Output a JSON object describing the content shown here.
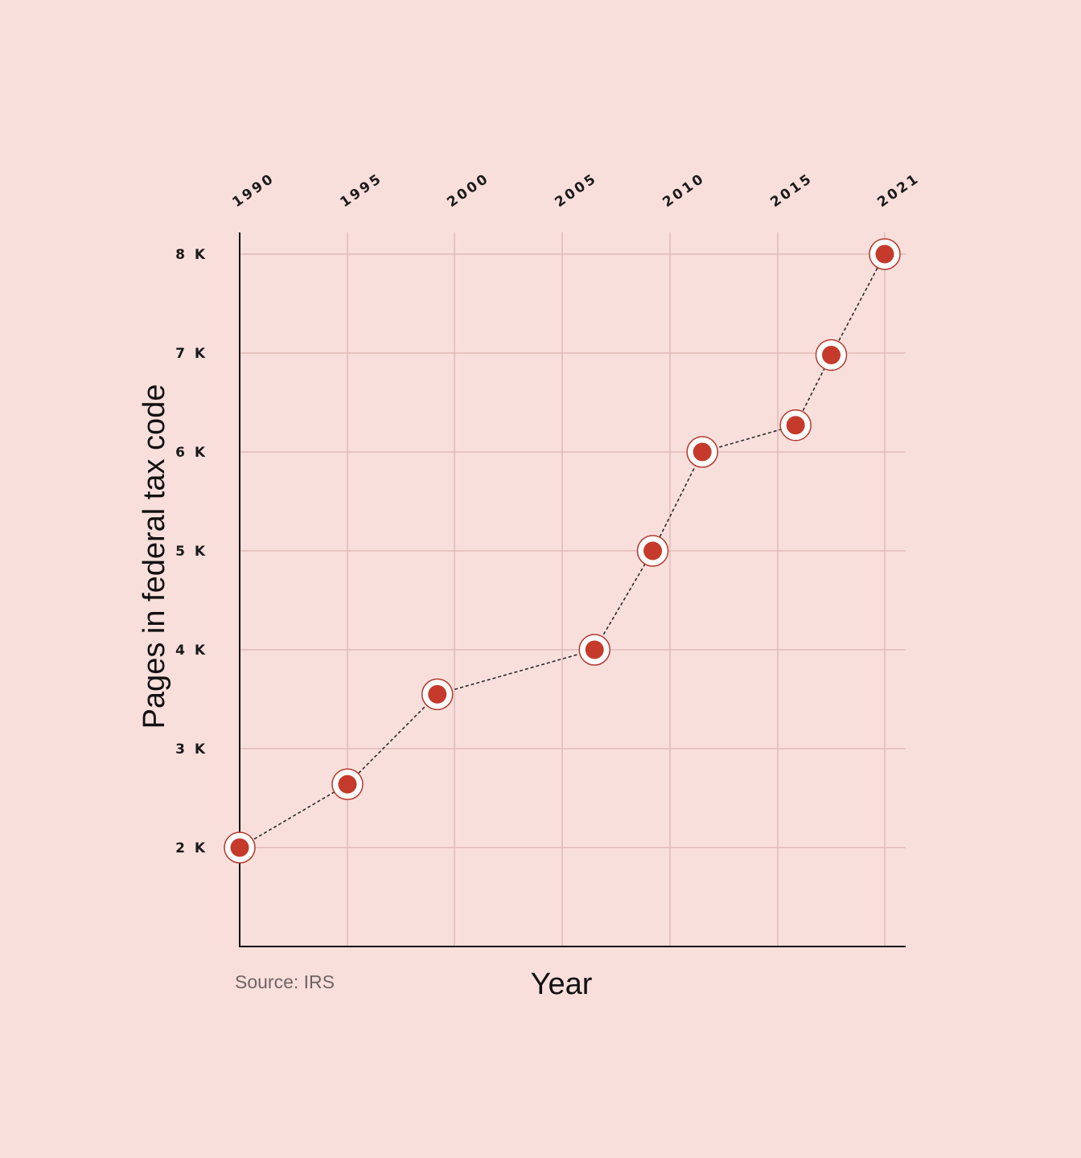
{
  "chart_data": {
    "type": "line",
    "xlabel": "Year",
    "ylabel": "Pages in federal tax code",
    "source": "Source: IRS",
    "x_ticks": [
      {
        "value": 1990,
        "label": "1990"
      },
      {
        "value": 1995,
        "label": "1995"
      },
      {
        "value": 2000,
        "label": "2000"
      },
      {
        "value": 2005,
        "label": "2005"
      },
      {
        "value": 2010,
        "label": "2010"
      },
      {
        "value": 2015,
        "label": "2015"
      },
      {
        "value": 2021,
        "label": "2021"
      }
    ],
    "y_ticks": [
      {
        "value": 2000,
        "label": "2 K"
      },
      {
        "value": 3000,
        "label": "3 K"
      },
      {
        "value": 4000,
        "label": "4 K"
      },
      {
        "value": 5000,
        "label": "5 K"
      },
      {
        "value": 6000,
        "label": "6 K"
      },
      {
        "value": 7000,
        "label": "7 K"
      },
      {
        "value": 8000,
        "label": "8 K"
      }
    ],
    "ylim": [
      1000,
      8230
    ],
    "grid": true,
    "series": [
      {
        "points": [
          {
            "x": 1990,
            "y": 2000
          },
          {
            "x": 1995,
            "y": 2640
          },
          {
            "x": 1999.2,
            "y": 3550
          },
          {
            "x": 2006.5,
            "y": 4000
          },
          {
            "x": 2009.2,
            "y": 5000
          },
          {
            "x": 2011.5,
            "y": 6000
          },
          {
            "x": 2016,
            "y": 6270
          },
          {
            "x": 2018,
            "y": 6980
          },
          {
            "x": 2021,
            "y": 8000
          }
        ]
      }
    ]
  },
  "colors": {
    "background": "#f9dfdc",
    "grid": "#dfbcba",
    "axis": "#111111",
    "marker_fill": "#c53a2b",
    "marker_ring": "#ffffff",
    "marker_outline": "#b4372a",
    "line": "#2a2a2a"
  }
}
